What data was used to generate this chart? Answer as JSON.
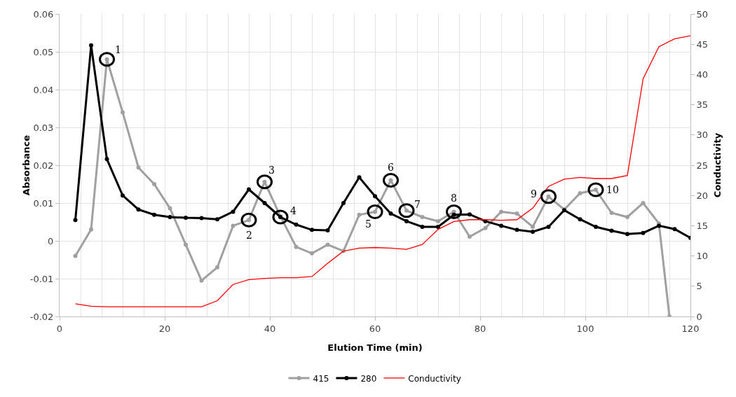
{
  "chart_data": {
    "type": "line",
    "xlabel": "Elution Time (min)",
    "ylabel": "Absorbance",
    "y2label": "Conductivity",
    "x": [
      3,
      6,
      9,
      12,
      15,
      18,
      21,
      24,
      27,
      30,
      33,
      36,
      39,
      42,
      45,
      48,
      51,
      54,
      57,
      60,
      63,
      66,
      69,
      72,
      75,
      78,
      81,
      84,
      87,
      90,
      93,
      96,
      99,
      102,
      105,
      108,
      111,
      114,
      117,
      120
    ],
    "series": [
      {
        "name": "415",
        "color": "#a0a0a0",
        "marker": "circle",
        "x": [
          3,
          6,
          9,
          12,
          15,
          18,
          21,
          24,
          27,
          30,
          33,
          36,
          39,
          42,
          45,
          48,
          51,
          54,
          57,
          60,
          63,
          66,
          69,
          72,
          75,
          78,
          81,
          84,
          87,
          90,
          93,
          96,
          99,
          102,
          105,
          108,
          111,
          114,
          116
        ],
        "values": [
          -0.004,
          0.003,
          0.048,
          0.034,
          0.0194,
          0.015,
          0.0086,
          -0.001,
          -0.0105,
          -0.007,
          0.004,
          0.0055,
          0.0156,
          0.0065,
          -0.0016,
          -0.0033,
          -0.001,
          -0.0027,
          0.0069,
          0.0077,
          0.016,
          0.008,
          0.0063,
          0.0052,
          0.0077,
          0.0011,
          0.0034,
          0.0077,
          0.0072,
          0.0037,
          0.0117,
          0.0083,
          0.0126,
          0.0135,
          0.0074,
          0.0063,
          0.01,
          0.0046,
          -0.02
        ]
      },
      {
        "name": "280",
        "color": "#000000",
        "marker": "circle",
        "values": [
          0.0055,
          0.0517,
          0.0216,
          0.012,
          0.0083,
          0.0069,
          0.0063,
          0.0061,
          0.006,
          0.0057,
          0.0077,
          0.0136,
          0.01,
          0.0063,
          0.0043,
          0.0029,
          0.0028,
          0.01,
          0.0168,
          0.0118,
          0.0072,
          0.0052,
          0.0037,
          0.0037,
          0.0069,
          0.007,
          0.0052,
          0.004,
          0.0029,
          0.0024,
          0.0037,
          0.0081,
          0.0057,
          0.0037,
          0.0027,
          0.0018,
          0.0021,
          0.004,
          0.0031,
          0.0008
        ]
      },
      {
        "name": "Conductivity",
        "color": "#ff0000",
        "axis": "y2",
        "values": [
          2.1,
          1.7,
          1.6,
          1.6,
          1.6,
          1.6,
          1.6,
          1.6,
          1.6,
          2.6,
          5.3,
          6.1,
          6.3,
          6.4,
          6.4,
          6.6,
          8.8,
          10.8,
          11.3,
          11.4,
          11.3,
          11.1,
          11.9,
          14.4,
          15.7,
          16.0,
          16.0,
          15.9,
          16.0,
          17.9,
          21.5,
          22.7,
          23.0,
          22.8,
          22.8,
          23.3,
          39.3,
          44.6,
          45.9,
          46.4
        ]
      }
    ],
    "xlim": [
      0,
      120
    ],
    "xticks": [
      0,
      20,
      40,
      60,
      80,
      100,
      120
    ],
    "ylim": [
      -0.02,
      0.06
    ],
    "yticks": [
      {
        "value": -0.02,
        "label": "-0.02"
      },
      {
        "value": -0.01,
        "label": "-0.01"
      },
      0,
      0.01,
      0.02,
      0.03,
      0.04,
      0.05,
      0.06
    ],
    "y2lim": [
      0,
      50
    ],
    "y2ticks": [
      0,
      5,
      10,
      15,
      20,
      25,
      30,
      35,
      40,
      45,
      50
    ],
    "grid": true,
    "legend": "bottom",
    "annotations": [
      {
        "text": "1",
        "x": 9,
        "y": 0.048
      },
      {
        "text": "2",
        "x": 36,
        "y": 0.0055
      },
      {
        "text": "3",
        "x": 39,
        "y": 0.0156
      },
      {
        "text": "4",
        "x": 42,
        "y": 0.0063
      },
      {
        "text": "5",
        "x": 60,
        "y": 0.0077
      },
      {
        "text": "6",
        "x": 63,
        "y": 0.016
      },
      {
        "text": "7",
        "x": 66,
        "y": 0.008
      },
      {
        "text": "8",
        "x": 75,
        "y": 0.0077
      },
      {
        "text": "9",
        "x": 93,
        "y": 0.0117
      },
      {
        "text": "10",
        "x": 102,
        "y": 0.0135
      }
    ]
  }
}
